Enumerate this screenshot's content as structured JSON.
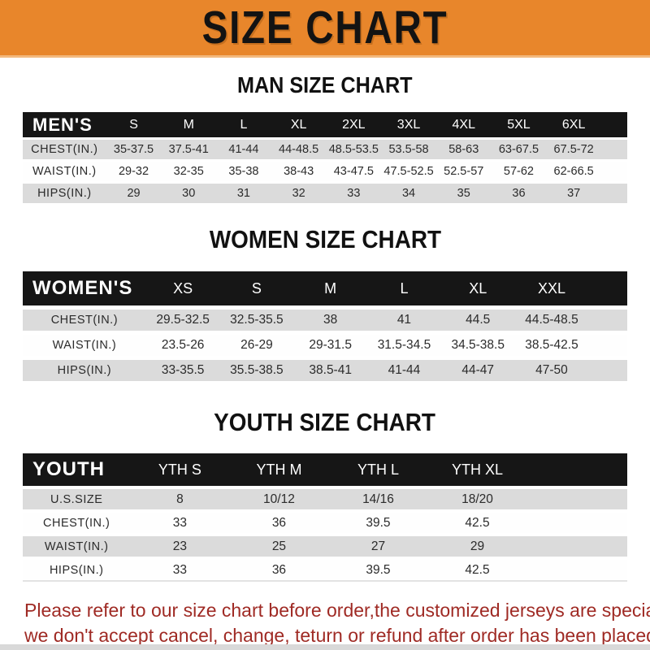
{
  "banner": {
    "title": "SIZE CHART"
  },
  "colors": {
    "banner_orange": "#E8862B",
    "table_bar_black": "#161616",
    "row_shade_gray": "#DBDBDB",
    "footer_red": "#9F2A24"
  },
  "sections": [
    {
      "heading": "MAN SIZE CHART",
      "table": {
        "label": "MEN'S",
        "columns": [
          "S",
          "M",
          "L",
          "XL",
          "2XL",
          "3XL",
          "4XL",
          "5XL",
          "6XL"
        ],
        "rows": [
          {
            "label": "CHEST(IN.)",
            "values": [
              "35-37.5",
              "37.5-41",
              "41-44",
              "44-48.5",
              "48.5-53.5",
              "53.5-58",
              "58-63",
              "63-67.5",
              "67.5-72"
            ]
          },
          {
            "label": "WAIST(IN.)",
            "values": [
              "29-32",
              "32-35",
              "35-38",
              "38-43",
              "43-47.5",
              "47.5-52.5",
              "52.5-57",
              "57-62",
              "62-66.5"
            ]
          },
          {
            "label": "HIPS(IN.)",
            "values": [
              "29",
              "30",
              "31",
              "32",
              "33",
              "34",
              "35",
              "36",
              "37"
            ]
          }
        ]
      }
    },
    {
      "heading": "WOMEN SIZE CHART",
      "table": {
        "label": "WOMEN'S",
        "columns": [
          "XS",
          "S",
          "M",
          "L",
          "XL",
          "XXL"
        ],
        "rows": [
          {
            "label": "CHEST(IN.)",
            "values": [
              "29.5-32.5",
              "32.5-35.5",
              "38",
              "41",
              "44.5",
              "44.5-48.5"
            ]
          },
          {
            "label": "WAIST(IN.)",
            "values": [
              "23.5-26",
              "26-29",
              "29-31.5",
              "31.5-34.5",
              "34.5-38.5",
              "38.5-42.5"
            ]
          },
          {
            "label": "HIPS(IN.)",
            "values": [
              "33-35.5",
              "35.5-38.5",
              "38.5-41",
              "41-44",
              "44-47",
              "47-50"
            ]
          }
        ]
      }
    },
    {
      "heading": "YOUTH SIZE CHART",
      "table": {
        "label": "YOUTH",
        "columns": [
          "YTH S",
          "YTH M",
          "YTH L",
          "YTH XL"
        ],
        "rows": [
          {
            "label": "U.S.SIZE",
            "values": [
              "8",
              "10/12",
              "14/16",
              "18/20"
            ]
          },
          {
            "label": "CHEST(IN.)",
            "values": [
              "33",
              "36",
              "39.5",
              "42.5"
            ]
          },
          {
            "label": "WAIST(IN.)",
            "values": [
              "23",
              "25",
              "27",
              "29"
            ]
          },
          {
            "label": "HIPS(IN.)",
            "values": [
              "33",
              "36",
              "39.5",
              "42.5"
            ]
          }
        ]
      }
    }
  ],
  "footer": {
    "line1": "Please refer to our size chart before order,the customized jerseys are special products,",
    "line2": "we don't accept cancel, change, teturn or refund after order has been placed!"
  }
}
